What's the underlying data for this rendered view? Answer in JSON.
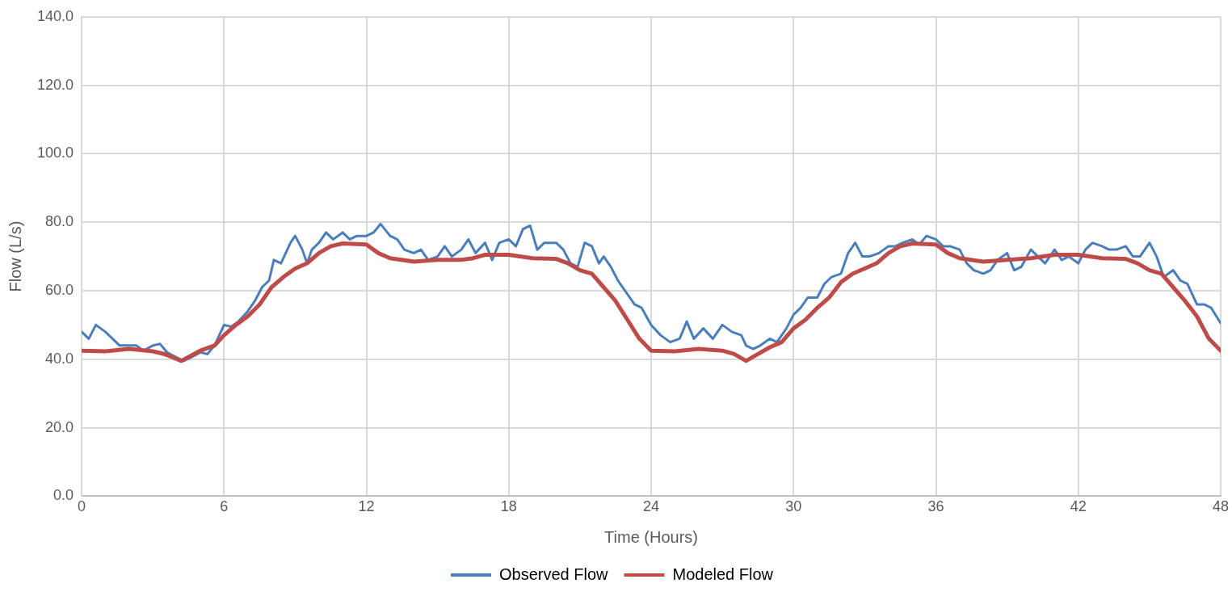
{
  "chart_data": {
    "type": "line",
    "xlabel": "Time (Hours)",
    "ylabel": "Flow (L/s)",
    "xlim": [
      0,
      48
    ],
    "xticks": [
      0,
      6,
      12,
      18,
      24,
      30,
      36,
      42,
      48
    ],
    "ylim": [
      0,
      140
    ],
    "yticks": [
      {
        "value": 0,
        "label": "0.0"
      },
      {
        "value": 20,
        "label": "20.0"
      },
      {
        "value": 40,
        "label": "40.0"
      },
      {
        "value": 60,
        "label": "60.0"
      },
      {
        "value": 80,
        "label": "80.0"
      },
      {
        "value": 100,
        "label": "100.0"
      },
      {
        "value": 120,
        "label": "120.0"
      },
      {
        "value": 140,
        "label": "140.0"
      }
    ],
    "grid": true,
    "legend": "bottom",
    "marker": "none",
    "series": [
      {
        "name": "Observed Flow",
        "color": "#4a7ebb",
        "x": [
          0,
          0.3,
          0.6,
          1.0,
          1.3,
          1.6,
          2.0,
          2.3,
          2.6,
          3.0,
          3.3,
          3.6,
          4.0,
          4.3,
          4.6,
          5.0,
          5.3,
          5.6,
          6.0,
          6.3,
          6.6,
          7.0,
          7.3,
          7.6,
          7.9,
          8.1,
          8.4,
          8.8,
          9.0,
          9.3,
          9.5,
          9.7,
          10,
          10.3,
          10.6,
          11,
          11.3,
          11.6,
          12,
          12.3,
          12.6,
          13,
          13.3,
          13.6,
          14,
          14.3,
          14.6,
          15,
          15.3,
          15.6,
          16,
          16.3,
          16.6,
          17,
          17.3,
          17.6,
          18,
          18.3,
          18.6,
          18.9,
          19.2,
          19.5,
          20,
          20.3,
          20.6,
          20.9,
          21.2,
          21.5,
          21.8,
          22,
          22.3,
          22.6,
          23,
          23.3,
          23.6,
          24,
          24.4,
          24.8,
          25.2,
          25.5,
          25.8,
          26.2,
          26.6,
          27,
          27.4,
          27.8,
          28,
          28.3,
          28.6,
          29,
          29.3,
          29.7,
          30,
          30.3,
          30.6,
          31,
          31.3,
          31.6,
          32,
          32.3,
          32.6,
          32.9,
          33.2,
          33.6,
          34,
          34.3,
          34.6,
          35,
          35.3,
          35.6,
          36,
          36.3,
          36.6,
          37,
          37.3,
          37.6,
          38,
          38.3,
          38.6,
          39,
          39.3,
          39.6,
          40,
          40.3,
          40.6,
          41,
          41.3,
          41.6,
          42,
          42.3,
          42.6,
          43,
          43.3,
          43.6,
          44,
          44.3,
          44.6,
          45,
          45.3,
          45.6,
          46,
          46.3,
          46.6,
          47,
          47.3,
          47.6,
          48
        ],
        "values": [
          48,
          46,
          50,
          48,
          46,
          44,
          44,
          44,
          42.5,
          44,
          44.5,
          42,
          40.5,
          39.5,
          40.5,
          42,
          41.5,
          44,
          50,
          49.5,
          51,
          54,
          57,
          61,
          63,
          69,
          68,
          74,
          76,
          72,
          68,
          72,
          74,
          77,
          75,
          77,
          75,
          76,
          76,
          77,
          79.5,
          76,
          75,
          72,
          71,
          72,
          69,
          70,
          73,
          70,
          72,
          75,
          71,
          74,
          69,
          74,
          75,
          73,
          78,
          79,
          72,
          74,
          74,
          72,
          68,
          67,
          74,
          73,
          68,
          70,
          67,
          63,
          59,
          56,
          55,
          50,
          47,
          45,
          46,
          51,
          46,
          49,
          46,
          50,
          48,
          47,
          44,
          43,
          44,
          46,
          45,
          49,
          53,
          55,
          58,
          58,
          62,
          64,
          65,
          71,
          74,
          70,
          70,
          71,
          73,
          73,
          74,
          75,
          73.5,
          76,
          75,
          73,
          73,
          72,
          68,
          66,
          65,
          66,
          69,
          71,
          66,
          67,
          72,
          70,
          68,
          72,
          69,
          70,
          68,
          72,
          74,
          73,
          72,
          72,
          73,
          70,
          70,
          74,
          70,
          64,
          66,
          63,
          62,
          56,
          56,
          55,
          50.5
        ]
      },
      {
        "name": "Modeled Flow",
        "color": "#be4b48",
        "x": [
          0,
          1,
          2,
          3,
          3.5,
          4.2,
          5,
          5.6,
          6,
          6.5,
          7,
          7.5,
          8,
          8.5,
          9,
          9.5,
          10,
          10.5,
          11,
          12,
          12.5,
          13,
          14,
          15,
          16,
          16.5,
          17,
          18,
          19,
          20,
          20.5,
          21,
          21.5,
          22,
          22.5,
          23,
          23.5,
          24,
          25,
          26,
          27,
          27.5,
          28,
          28.5,
          29,
          29.5,
          30,
          30.5,
          31,
          31.5,
          32,
          32.5,
          33,
          33.5,
          34,
          34.5,
          35,
          36,
          36.5,
          37,
          38,
          39,
          40,
          41,
          42,
          43,
          44,
          44.5,
          45,
          45.5,
          46,
          46.5,
          47,
          47.5,
          48
        ],
        "values": [
          42.5,
          42.3,
          43,
          42.3,
          41.5,
          39.5,
          42.5,
          44,
          47,
          50,
          52.5,
          56,
          61,
          64,
          66.5,
          68,
          71,
          73,
          73.8,
          73.5,
          71,
          69.5,
          68.5,
          69,
          69,
          69.5,
          70.5,
          70.5,
          69.5,
          69.3,
          68,
          66,
          65,
          61,
          57,
          51.5,
          46,
          42.5,
          42.3,
          43,
          42.5,
          41.5,
          39.5,
          41.5,
          43.5,
          45,
          49,
          51.5,
          55,
          58,
          62.5,
          65,
          66.5,
          68,
          71,
          73,
          73.8,
          73.5,
          71,
          69.5,
          68.5,
          69,
          69.5,
          70.5,
          70.5,
          69.5,
          69.3,
          68,
          66,
          65,
          61,
          57,
          52.5,
          46,
          42.5
        ]
      }
    ]
  }
}
